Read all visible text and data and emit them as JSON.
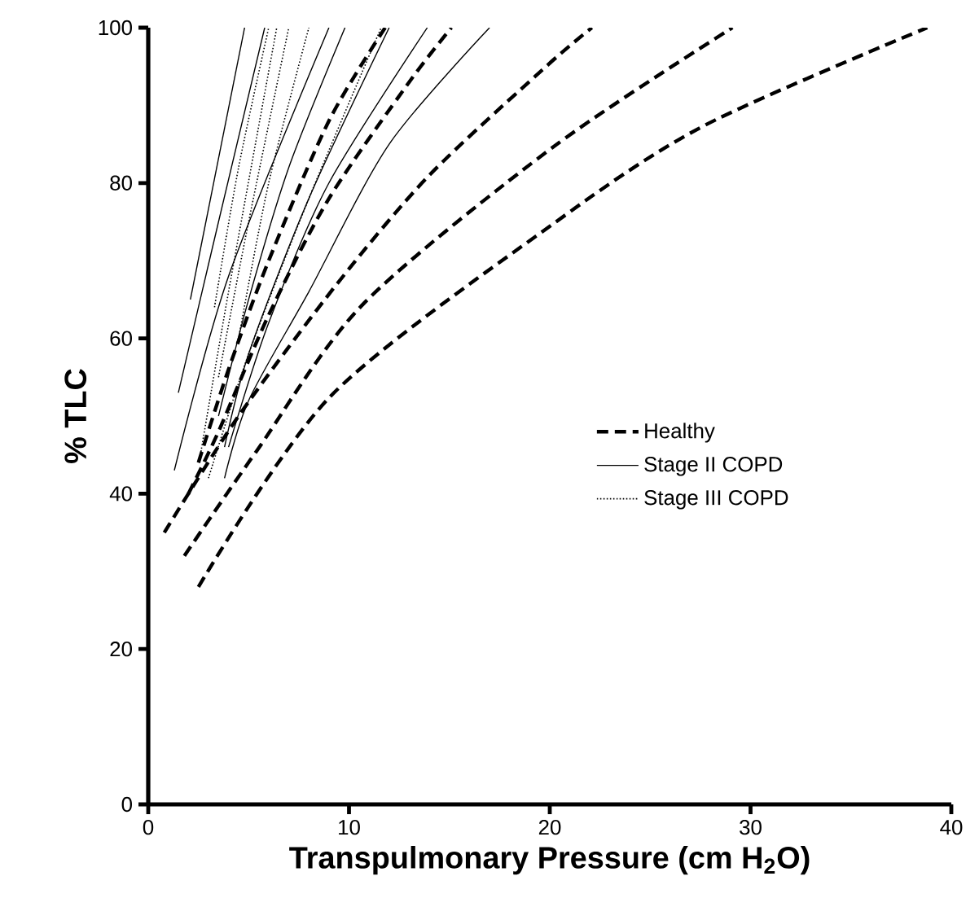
{
  "chart_data": {
    "type": "line",
    "xlabel": "Transpulmonary Pressure (cm H$_{2}$O)",
    "ylabel": "% TLC",
    "xlim": [
      0,
      40
    ],
    "ylim": [
      0,
      100
    ],
    "xticks": [
      0,
      10,
      20,
      30,
      40
    ],
    "yticks": [
      0,
      20,
      40,
      60,
      80,
      100
    ],
    "grid": false,
    "legend": "right",
    "marker": "none",
    "series": [
      {
        "name": "Healthy",
        "color": "#000000",
        "line_style": "dashed",
        "x": [
          2.5,
          9.1,
          20.2,
          27.7,
          38.8
        ],
        "values": [
          28,
          52.6,
          74.8,
          87.4,
          100
        ]
      },
      {
        "color": "#000000",
        "line_style": "dashed",
        "x": [
          1.8,
          5.4,
          10.7,
          20.2,
          29.1
        ],
        "values": [
          32,
          45.5,
          64.4,
          84.7,
          100
        ]
      },
      {
        "color": "#000000",
        "line_style": "dashed",
        "x": [
          0.8,
          4.5,
          9.4,
          14,
          19.9,
          22.1
        ],
        "values": [
          35,
          50,
          67,
          81,
          95.2,
          100
        ]
      },
      {
        "color": "#000000",
        "line_style": "dashed",
        "x": [
          2,
          3.5,
          6,
          9,
          13,
          15.1
        ],
        "values": [
          40,
          48,
          63,
          78,
          93,
          100
        ]
      },
      {
        "color": "#000000",
        "line_style": "dashed",
        "x": [
          2.5,
          4,
          6,
          9,
          11.8
        ],
        "values": [
          44,
          56,
          70,
          88,
          100
        ]
      },
      {
        "name": "Stage II COPD",
        "color": "#000000",
        "line_style": "solid",
        "x": [
          2.1,
          4.8
        ],
        "values": [
          65,
          100
        ]
      },
      {
        "color": "#000000",
        "line_style": "solid",
        "x": [
          1.5,
          3.5,
          5.8
        ],
        "values": [
          53,
          75,
          100
        ]
      },
      {
        "color": "#000000",
        "line_style": "solid",
        "x": [
          1.3,
          4,
          9
        ],
        "values": [
          43,
          68,
          100
        ]
      },
      {
        "color": "#000000",
        "line_style": "solid",
        "x": [
          3.5,
          5,
          7,
          9.8
        ],
        "values": [
          50,
          65,
          82,
          100
        ]
      },
      {
        "color": "#000000",
        "line_style": "solid",
        "x": [
          3.8,
          5,
          8,
          12
        ],
        "values": [
          46,
          58,
          78,
          100
        ]
      },
      {
        "color": "#000000",
        "line_style": "solid",
        "x": [
          4,
          6,
          9,
          13.9
        ],
        "values": [
          46,
          62,
          80,
          100
        ]
      },
      {
        "color": "#000000",
        "line_style": "solid",
        "x": [
          3.8,
          5,
          8,
          12,
          17
        ],
        "values": [
          42,
          52,
          66,
          85,
          100
        ]
      },
      {
        "name": "Stage III COPD",
        "color": "#000000",
        "line_style": "dotted",
        "x": [
          3.3,
          4.5,
          6.0
        ],
        "values": [
          64,
          82,
          100
        ]
      },
      {
        "color": "#000000",
        "line_style": "dotted",
        "x": [
          2.6,
          4,
          6.4
        ],
        "values": [
          45,
          66,
          100
        ]
      },
      {
        "color": "#000000",
        "line_style": "dotted",
        "x": [
          3.5,
          5,
          7.0
        ],
        "values": [
          55,
          75,
          100
        ]
      },
      {
        "color": "#000000",
        "line_style": "dotted",
        "x": [
          4.5,
          6,
          8.0
        ],
        "values": [
          60,
          80,
          100
        ]
      },
      {
        "color": "#000000",
        "line_style": "dotted",
        "x": [
          3,
          5,
          8,
          11.6
        ],
        "values": [
          42,
          58,
          78,
          100
        ]
      }
    ]
  }
}
